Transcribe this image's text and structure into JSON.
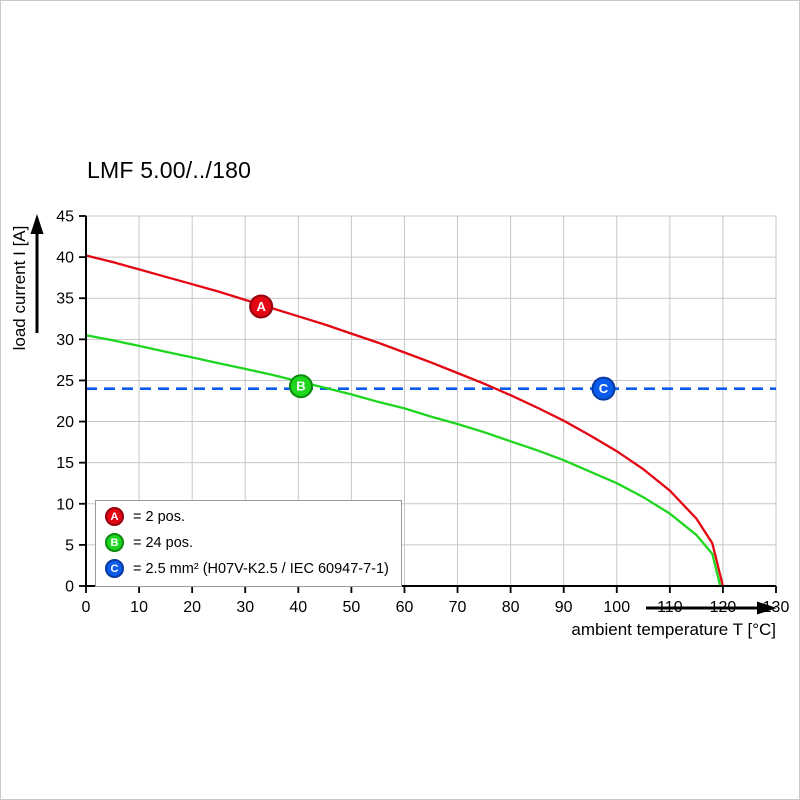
{
  "page": {
    "title": "LMF 5.00/../180"
  },
  "chart_data": {
    "type": "line",
    "title": "LMF 5.00/../180",
    "xlabel": "ambient temperature T [°C]",
    "ylabel": "load current I [A]",
    "xlim": [
      0,
      130
    ],
    "xtick_step": 10,
    "ylim": [
      0,
      45
    ],
    "ytick_step": 5,
    "grid": true,
    "legend_position": "bottom-left-inside",
    "series": [
      {
        "name": "A",
        "legend_text": "= 2 pos.",
        "type": "curve",
        "color": "#e30613",
        "edge": "#96000d",
        "marker": {
          "x": 33,
          "y": 34
        },
        "points": [
          [
            0,
            40.2
          ],
          [
            5,
            39.4
          ],
          [
            10,
            38.5
          ],
          [
            15,
            37.6
          ],
          [
            20,
            36.7
          ],
          [
            25,
            35.8
          ],
          [
            30,
            34.8
          ],
          [
            35,
            33.8
          ],
          [
            40,
            32.8
          ],
          [
            45,
            31.8
          ],
          [
            50,
            30.7
          ],
          [
            55,
            29.6
          ],
          [
            60,
            28.4
          ],
          [
            65,
            27.2
          ],
          [
            70,
            25.9
          ],
          [
            75,
            24.6
          ],
          [
            80,
            23.2
          ],
          [
            85,
            21.7
          ],
          [
            90,
            20.1
          ],
          [
            95,
            18.3
          ],
          [
            100,
            16.4
          ],
          [
            105,
            14.2
          ],
          [
            110,
            11.6
          ],
          [
            115,
            8.2
          ],
          [
            118,
            5.2
          ],
          [
            120,
            0
          ]
        ]
      },
      {
        "name": "B",
        "legend_text": "= 24 pos.",
        "type": "curve",
        "color": "#1fd61f",
        "edge": "#0b8a0b",
        "marker": {
          "x": 40.5,
          "y": 24.3
        },
        "points": [
          [
            0,
            30.5
          ],
          [
            5,
            29.9
          ],
          [
            10,
            29.2
          ],
          [
            15,
            28.5
          ],
          [
            20,
            27.8
          ],
          [
            25,
            27.1
          ],
          [
            30,
            26.4
          ],
          [
            35,
            25.7
          ],
          [
            40,
            24.9
          ],
          [
            45,
            24.1
          ],
          [
            50,
            23.3
          ],
          [
            55,
            22.4
          ],
          [
            60,
            21.6
          ],
          [
            65,
            20.6
          ],
          [
            70,
            19.7
          ],
          [
            75,
            18.7
          ],
          [
            80,
            17.6
          ],
          [
            85,
            16.5
          ],
          [
            90,
            15.3
          ],
          [
            95,
            13.9
          ],
          [
            100,
            12.5
          ],
          [
            105,
            10.8
          ],
          [
            110,
            8.8
          ],
          [
            115,
            6.2
          ],
          [
            118,
            3.9
          ],
          [
            119.5,
            0
          ]
        ]
      },
      {
        "name": "C",
        "legend_text": "= 2.5 mm² (H07V-K2.5 / IEC 60947-7-1)",
        "type": "threshold",
        "style": "dashed",
        "color": "#0b5ced",
        "edge": "#063a9e",
        "y": 24,
        "marker": {
          "x": 97.5,
          "y": 24
        }
      }
    ]
  }
}
